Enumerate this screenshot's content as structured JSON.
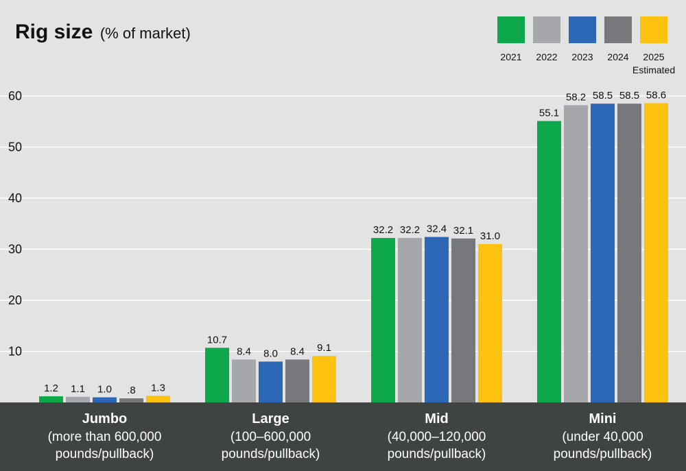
{
  "chart_data": {
    "type": "bar",
    "title": "Rig size",
    "subtitle": "(% of market)",
    "ylim": [
      0,
      60
    ],
    "yticks": [
      "10",
      "20",
      "30",
      "40",
      "50",
      "60"
    ],
    "grid": true,
    "legend_position": "top-right",
    "categories": [
      {
        "name": "Jumbo",
        "lines": [
          "(more than 600,000",
          "pounds/pullback)"
        ]
      },
      {
        "name": "Large",
        "lines": [
          "(100–600,000",
          "pounds/pullback)"
        ]
      },
      {
        "name": "Mid",
        "lines": [
          "(40,000–120,000",
          "pounds/pullback)"
        ]
      },
      {
        "name": "Mini",
        "lines": [
          "(under 40,000",
          "pounds/pullback)"
        ]
      }
    ],
    "series": [
      {
        "name": "2021",
        "color": "#0ca84a",
        "values": [
          1.2,
          10.7,
          32.2,
          55.1
        ],
        "labels": [
          "1.2",
          "10.7",
          "32.2",
          "55.1"
        ]
      },
      {
        "name": "2022",
        "color": "#a6a7aa",
        "values": [
          1.1,
          8.4,
          32.2,
          58.2
        ],
        "labels": [
          "1.1",
          "8.4",
          "32.2",
          "58.2"
        ]
      },
      {
        "name": "2023",
        "color": "#2c68b5",
        "values": [
          1.0,
          8.0,
          32.4,
          58.5
        ],
        "labels": [
          "1.0",
          "8.0",
          "32.4",
          "58.5"
        ]
      },
      {
        "name": "2024",
        "color": "#77787b",
        "values": [
          0.8,
          8.4,
          32.1,
          58.5
        ],
        "labels": [
          ".8",
          "8.4",
          "32.1",
          "58.5"
        ]
      },
      {
        "name": "2025",
        "name_line2": "Estimated",
        "color": "#fdc20f",
        "values": [
          1.3,
          9.1,
          31.0,
          58.6
        ],
        "labels": [
          "1.3",
          "9.1",
          "31.0",
          "58.6"
        ]
      }
    ],
    "colors": {
      "background": "#e3e3e3",
      "footer": "#3f4442",
      "gridline": "#ffffff"
    }
  }
}
